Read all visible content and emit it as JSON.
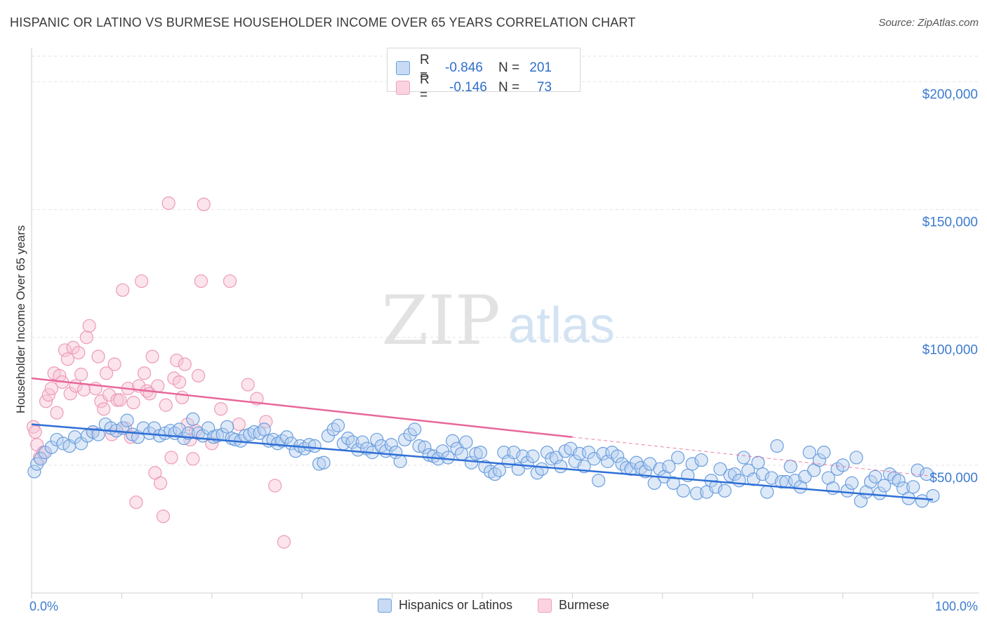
{
  "title": "HISPANIC OR LATINO VS BURMESE HOUSEHOLDER INCOME OVER 65 YEARS CORRELATION CHART",
  "source": "Source: ZipAtlas.com",
  "watermark": {
    "zip": "ZIP",
    "atlas": "atlas"
  },
  "stats": [
    {
      "r_label": "R =",
      "r_value": "-0.846",
      "n_label": "N =",
      "n_value": "201",
      "color": "#6fa0e0"
    },
    {
      "r_label": "R =",
      "r_value": "-0.146",
      "n_label": "N =",
      "n_value": "73",
      "color": "#f0a0bc"
    }
  ],
  "chart_data": {
    "type": "scatter",
    "title": "HISPANIC OR LATINO VS BURMESE HOUSEHOLDER INCOME OVER 65 YEARS CORRELATION CHART",
    "xlabel": "",
    "ylabel": "Householder Income Over 65 years",
    "xlim": [
      0,
      100
    ],
    "ylim": [
      0,
      210000
    ],
    "x_tick_labels": [
      "0.0%",
      "100.0%"
    ],
    "y_ticks": [
      50000,
      100000,
      150000,
      200000
    ],
    "y_tick_labels": [
      "$50,000",
      "$100,000",
      "$150,000",
      "$200,000"
    ],
    "grid": true,
    "legend_position": "bottom",
    "series": [
      {
        "name": "Hispanics or Latinos",
        "color": "#6fa0e0",
        "line_color": "#2f6fd6",
        "trend": {
          "x": [
            0,
            100
          ],
          "y": [
            66000,
            36500
          ]
        },
        "points": [
          [
            0.3,
            47500
          ],
          [
            0.6,
            50500
          ],
          [
            1.0,
            52500
          ],
          [
            1.5,
            55000
          ],
          [
            2.2,
            57000
          ],
          [
            2.8,
            60000
          ],
          [
            3.5,
            58500
          ],
          [
            4.2,
            57500
          ],
          [
            4.8,
            61000
          ],
          [
            5.5,
            58500
          ],
          [
            6.2,
            61500
          ],
          [
            6.8,
            63000
          ],
          [
            7.4,
            62000
          ],
          [
            8.2,
            66000
          ],
          [
            8.8,
            64500
          ],
          [
            9.4,
            63500
          ],
          [
            10.1,
            64500
          ],
          [
            10.6,
            67500
          ],
          [
            11.2,
            62000
          ],
          [
            11.8,
            61000
          ],
          [
            12.4,
            64500
          ],
          [
            13.1,
            62500
          ],
          [
            13.6,
            64500
          ],
          [
            14.2,
            61500
          ],
          [
            14.8,
            62500
          ],
          [
            15.4,
            63500
          ],
          [
            15.9,
            62500
          ],
          [
            16.4,
            64000
          ],
          [
            16.9,
            60500
          ],
          [
            17.4,
            62500
          ],
          [
            17.9,
            68000
          ],
          [
            18.5,
            62500
          ],
          [
            19.0,
            61500
          ],
          [
            19.6,
            64500
          ],
          [
            20.2,
            61000
          ],
          [
            20.6,
            61500
          ],
          [
            21.2,
            62000
          ],
          [
            21.7,
            65000
          ],
          [
            22.2,
            60500
          ],
          [
            22.6,
            60000
          ],
          [
            23.2,
            59500
          ],
          [
            23.7,
            61500
          ],
          [
            24.2,
            62000
          ],
          [
            24.7,
            63000
          ],
          [
            25.3,
            62500
          ],
          [
            25.8,
            64000
          ],
          [
            26.3,
            59500
          ],
          [
            26.8,
            60000
          ],
          [
            27.3,
            58500
          ],
          [
            27.8,
            59500
          ],
          [
            28.3,
            61000
          ],
          [
            28.8,
            58500
          ],
          [
            29.3,
            55500
          ],
          [
            29.8,
            57500
          ],
          [
            30.3,
            56500
          ],
          [
            30.8,
            58000
          ],
          [
            31.4,
            57500
          ],
          [
            31.9,
            50500
          ],
          [
            32.4,
            51000
          ],
          [
            32.9,
            61500
          ],
          [
            33.5,
            64000
          ],
          [
            34.0,
            65500
          ],
          [
            34.6,
            58500
          ],
          [
            35.1,
            60500
          ],
          [
            35.6,
            59000
          ],
          [
            36.2,
            56000
          ],
          [
            36.7,
            59000
          ],
          [
            37.2,
            56500
          ],
          [
            37.8,
            55000
          ],
          [
            38.3,
            60000
          ],
          [
            38.8,
            57500
          ],
          [
            39.3,
            55500
          ],
          [
            39.9,
            58000
          ],
          [
            40.4,
            55000
          ],
          [
            40.9,
            51500
          ],
          [
            41.4,
            60000
          ],
          [
            42.0,
            62000
          ],
          [
            42.5,
            64000
          ],
          [
            43.0,
            57500
          ],
          [
            43.6,
            57000
          ],
          [
            44.1,
            54000
          ],
          [
            44.6,
            53500
          ],
          [
            45.1,
            52500
          ],
          [
            45.6,
            55500
          ],
          [
            46.2,
            53000
          ],
          [
            46.7,
            59500
          ],
          [
            47.2,
            56500
          ],
          [
            47.7,
            54500
          ],
          [
            48.2,
            59000
          ],
          [
            48.8,
            51000
          ],
          [
            49.3,
            54500
          ],
          [
            49.8,
            55000
          ],
          [
            50.3,
            49500
          ],
          [
            50.9,
            47500
          ],
          [
            51.4,
            46500
          ],
          [
            51.9,
            48000
          ],
          [
            52.4,
            55000
          ],
          [
            52.9,
            51500
          ],
          [
            53.5,
            55000
          ],
          [
            54.0,
            48500
          ],
          [
            54.5,
            53500
          ],
          [
            55.0,
            51000
          ],
          [
            55.6,
            53500
          ],
          [
            56.1,
            47000
          ],
          [
            56.6,
            48500
          ],
          [
            57.2,
            55000
          ],
          [
            57.7,
            52500
          ],
          [
            58.2,
            53000
          ],
          [
            58.7,
            49500
          ],
          [
            59.2,
            55500
          ],
          [
            59.8,
            56500
          ],
          [
            60.3,
            51500
          ],
          [
            60.8,
            54500
          ],
          [
            61.3,
            49500
          ],
          [
            61.8,
            55000
          ],
          [
            62.4,
            52500
          ],
          [
            62.9,
            44000
          ],
          [
            63.4,
            54500
          ],
          [
            63.9,
            51500
          ],
          [
            64.4,
            55000
          ],
          [
            65.0,
            53500
          ],
          [
            65.5,
            50500
          ],
          [
            66.0,
            49000
          ],
          [
            66.5,
            48500
          ],
          [
            67.1,
            51000
          ],
          [
            67.6,
            49000
          ],
          [
            68.1,
            47500
          ],
          [
            68.6,
            50500
          ],
          [
            69.1,
            43000
          ],
          [
            69.7,
            48500
          ],
          [
            70.2,
            45500
          ],
          [
            70.7,
            49500
          ],
          [
            71.2,
            43000
          ],
          [
            71.7,
            53000
          ],
          [
            72.3,
            40000
          ],
          [
            72.8,
            46000
          ],
          [
            73.3,
            50500
          ],
          [
            73.8,
            39000
          ],
          [
            74.3,
            52000
          ],
          [
            74.9,
            39500
          ],
          [
            75.4,
            44000
          ],
          [
            75.9,
            41500
          ],
          [
            76.4,
            48500
          ],
          [
            76.9,
            40000
          ],
          [
            77.5,
            46000
          ],
          [
            78.0,
            46500
          ],
          [
            78.5,
            44000
          ],
          [
            79.0,
            53000
          ],
          [
            79.5,
            48000
          ],
          [
            80.1,
            44500
          ],
          [
            80.6,
            51000
          ],
          [
            81.1,
            46500
          ],
          [
            81.6,
            39500
          ],
          [
            82.1,
            45000
          ],
          [
            82.7,
            57500
          ],
          [
            83.2,
            43500
          ],
          [
            83.7,
            43500
          ],
          [
            84.2,
            49500
          ],
          [
            84.7,
            44000
          ],
          [
            85.3,
            41500
          ],
          [
            85.8,
            45500
          ],
          [
            86.3,
            55000
          ],
          [
            86.8,
            48000
          ],
          [
            87.4,
            52000
          ],
          [
            87.9,
            55000
          ],
          [
            88.4,
            45000
          ],
          [
            88.9,
            41000
          ],
          [
            89.4,
            48500
          ],
          [
            90.0,
            50000
          ],
          [
            90.5,
            40000
          ],
          [
            91.0,
            43000
          ],
          [
            91.5,
            53000
          ],
          [
            92.0,
            36000
          ],
          [
            92.6,
            39500
          ],
          [
            93.1,
            43500
          ],
          [
            93.6,
            45500
          ],
          [
            94.1,
            39000
          ],
          [
            94.6,
            42000
          ],
          [
            95.2,
            46500
          ],
          [
            95.7,
            45000
          ],
          [
            96.2,
            44000
          ],
          [
            96.7,
            41000
          ],
          [
            97.3,
            37000
          ],
          [
            97.8,
            41500
          ],
          [
            98.3,
            48000
          ],
          [
            98.8,
            36000
          ],
          [
            99.3,
            46500
          ],
          [
            100.0,
            38000
          ]
        ]
      },
      {
        "name": "Burmese",
        "color": "#f0a0bc",
        "line_color": "#e8679a",
        "trend": {
          "x": [
            0,
            60
          ],
          "y": [
            84000,
            61000
          ]
        },
        "points": [
          [
            0.2,
            65000
          ],
          [
            0.4,
            63000
          ],
          [
            0.6,
            58000
          ],
          [
            0.9,
            53000
          ],
          [
            1.3,
            55000
          ],
          [
            1.6,
            75000
          ],
          [
            1.9,
            77500
          ],
          [
            2.2,
            80000
          ],
          [
            2.5,
            86000
          ],
          [
            2.8,
            70500
          ],
          [
            3.1,
            85000
          ],
          [
            3.4,
            82500
          ],
          [
            3.7,
            95000
          ],
          [
            4.0,
            91500
          ],
          [
            4.3,
            78000
          ],
          [
            4.6,
            96000
          ],
          [
            4.9,
            81000
          ],
          [
            5.2,
            94000
          ],
          [
            5.5,
            85500
          ],
          [
            5.8,
            79500
          ],
          [
            6.1,
            100000
          ],
          [
            6.4,
            104500
          ],
          [
            6.8,
            63000
          ],
          [
            7.1,
            80000
          ],
          [
            7.4,
            92500
          ],
          [
            7.7,
            75000
          ],
          [
            8.0,
            72000
          ],
          [
            8.3,
            86000
          ],
          [
            8.6,
            77500
          ],
          [
            8.9,
            62000
          ],
          [
            9.2,
            89500
          ],
          [
            9.5,
            75500
          ],
          [
            9.8,
            75500
          ],
          [
            10.1,
            118500
          ],
          [
            10.4,
            64500
          ],
          [
            10.7,
            80000
          ],
          [
            11.0,
            61000
          ],
          [
            11.3,
            74500
          ],
          [
            11.6,
            35500
          ],
          [
            11.9,
            81000
          ],
          [
            12.2,
            122000
          ],
          [
            12.5,
            86000
          ],
          [
            12.8,
            79000
          ],
          [
            13.1,
            78000
          ],
          [
            13.4,
            92500
          ],
          [
            13.7,
            47000
          ],
          [
            14.0,
            81000
          ],
          [
            14.3,
            43000
          ],
          [
            14.6,
            30000
          ],
          [
            14.9,
            73500
          ],
          [
            15.2,
            152500
          ],
          [
            15.5,
            53000
          ],
          [
            15.8,
            84000
          ],
          [
            16.1,
            91000
          ],
          [
            16.4,
            82500
          ],
          [
            16.7,
            76500
          ],
          [
            17.0,
            89500
          ],
          [
            17.3,
            66000
          ],
          [
            17.6,
            60000
          ],
          [
            17.9,
            52500
          ],
          [
            18.2,
            63500
          ],
          [
            18.5,
            85000
          ],
          [
            18.8,
            122000
          ],
          [
            19.1,
            152000
          ],
          [
            20.0,
            58500
          ],
          [
            21.0,
            72000
          ],
          [
            22.0,
            122000
          ],
          [
            23.0,
            66000
          ],
          [
            24.0,
            81500
          ],
          [
            25.0,
            76000
          ],
          [
            26.0,
            67000
          ],
          [
            27.0,
            42000
          ],
          [
            28.0,
            20000
          ]
        ]
      }
    ]
  },
  "legend": [
    {
      "label": "Hispanics or Latinos",
      "color": "#6fa0e0"
    },
    {
      "label": "Burmese",
      "color": "#f0a0bc"
    }
  ]
}
